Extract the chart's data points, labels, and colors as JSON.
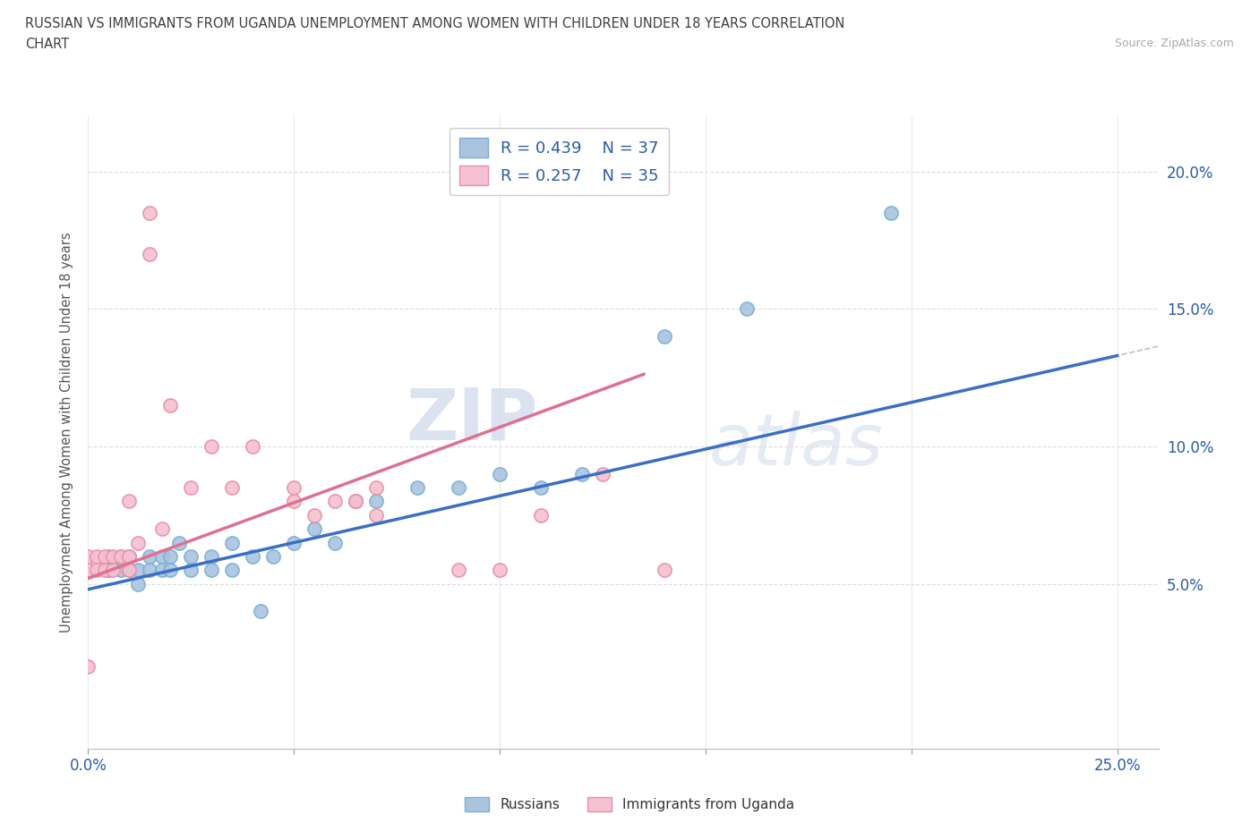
{
  "title_line1": "RUSSIAN VS IMMIGRANTS FROM UGANDA UNEMPLOYMENT AMONG WOMEN WITH CHILDREN UNDER 18 YEARS CORRELATION",
  "title_line2": "CHART",
  "source": "Source: ZipAtlas.com",
  "ylabel": "Unemployment Among Women with Children Under 18 years",
  "xlim": [
    0.0,
    0.26
  ],
  "ylim": [
    -0.01,
    0.22
  ],
  "right_yticks": [
    0.05,
    0.1,
    0.15,
    0.2
  ],
  "right_ytick_labels": [
    "5.0%",
    "10.0%",
    "15.0%",
    "20.0%"
  ],
  "xtick_left_label": "0.0%",
  "xtick_right_label": "25.0%",
  "russian_color": "#aac4e0",
  "russian_edge_color": "#7bafd4",
  "uganda_color": "#f5c0d0",
  "uganda_edge_color": "#e890a8",
  "russian_R": 0.439,
  "russian_N": 37,
  "uganda_R": 0.257,
  "uganda_N": 35,
  "russian_scatter_x": [
    0.005,
    0.005,
    0.008,
    0.008,
    0.01,
    0.01,
    0.012,
    0.012,
    0.015,
    0.015,
    0.018,
    0.018,
    0.02,
    0.02,
    0.022,
    0.025,
    0.025,
    0.03,
    0.03,
    0.035,
    0.035,
    0.04,
    0.042,
    0.045,
    0.05,
    0.055,
    0.06,
    0.065,
    0.07,
    0.08,
    0.09,
    0.1,
    0.11,
    0.12,
    0.14,
    0.16,
    0.195
  ],
  "russian_scatter_y": [
    0.055,
    0.06,
    0.055,
    0.06,
    0.055,
    0.06,
    0.055,
    0.05,
    0.06,
    0.055,
    0.06,
    0.055,
    0.06,
    0.055,
    0.065,
    0.055,
    0.06,
    0.06,
    0.055,
    0.065,
    0.055,
    0.06,
    0.04,
    0.06,
    0.065,
    0.07,
    0.065,
    0.08,
    0.08,
    0.085,
    0.085,
    0.09,
    0.085,
    0.09,
    0.14,
    0.15,
    0.185
  ],
  "uganda_scatter_x": [
    0.0,
    0.0,
    0.0,
    0.002,
    0.002,
    0.004,
    0.004,
    0.006,
    0.006,
    0.008,
    0.01,
    0.01,
    0.01,
    0.012,
    0.015,
    0.015,
    0.018,
    0.02,
    0.025,
    0.03,
    0.035,
    0.04,
    0.05,
    0.05,
    0.055,
    0.06,
    0.065,
    0.065,
    0.07,
    0.07,
    0.09,
    0.1,
    0.11,
    0.125,
    0.14
  ],
  "uganda_scatter_y": [
    0.055,
    0.06,
    0.02,
    0.06,
    0.055,
    0.055,
    0.06,
    0.06,
    0.055,
    0.06,
    0.08,
    0.06,
    0.055,
    0.065,
    0.17,
    0.185,
    0.07,
    0.115,
    0.085,
    0.1,
    0.085,
    0.1,
    0.085,
    0.08,
    0.075,
    0.08,
    0.08,
    0.08,
    0.085,
    0.075,
    0.055,
    0.055,
    0.075,
    0.09,
    0.055
  ],
  "russian_trend_intercept": 0.048,
  "russian_trend_slope": 0.34,
  "uganda_trend_intercept": 0.052,
  "uganda_trend_slope": 0.55,
  "uganda_trend_xmax": 0.135,
  "dashed_trend_intercept": 0.048,
  "dashed_trend_slope": 0.34,
  "watermark_zip": "ZIP",
  "watermark_atlas": "atlas",
  "background_color": "#ffffff",
  "blue_line_color": "#3a6fc4",
  "pink_line_color": "#e07090",
  "dashed_line_color": "#c0c0c0",
  "legend_label_color": "#2a5ca8",
  "title_color": "#404040",
  "axis_label_color": "#2a5ca8",
  "source_color": "#aaaaaa"
}
